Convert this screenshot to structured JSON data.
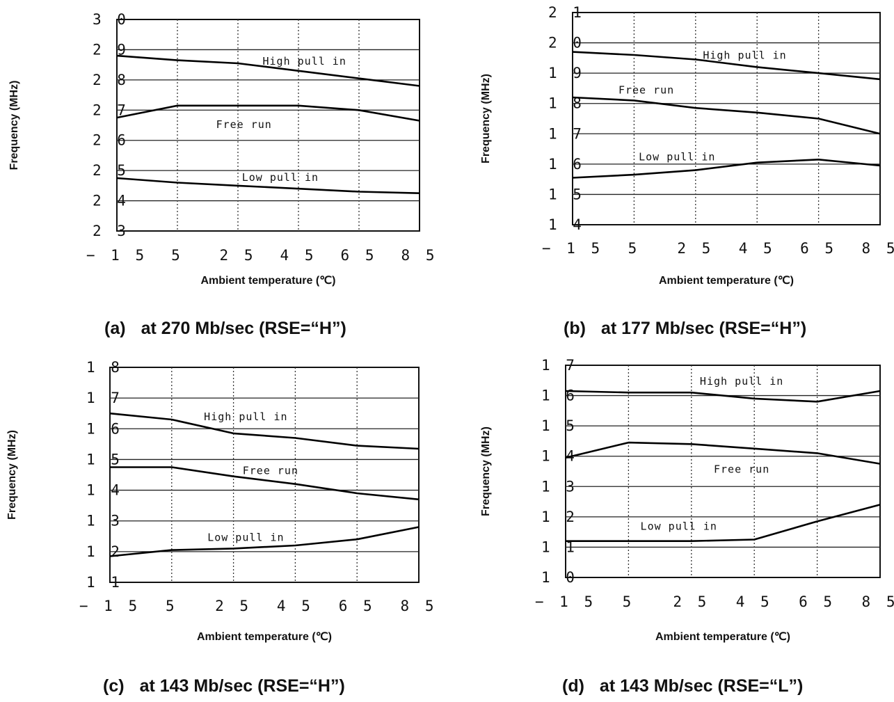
{
  "chart_data": [
    {
      "type": "line",
      "panel_label": "(a)",
      "caption": "at 270 Mb/sec (RSE=“H”)",
      "xlabel": "Ambient temperature (℃)",
      "ylabel": "Frequency (MHz)",
      "x_ticks": [
        "− 1 5",
        "5",
        "2 5",
        "4 5",
        "6 5",
        "8 5"
      ],
      "y_ticks": [
        "2 3",
        "2 4",
        "2 5",
        "2 6",
        "2 7",
        "2 8",
        "2 9",
        "3 0"
      ],
      "xlim": [
        -15,
        85
      ],
      "ylim": [
        23,
        30
      ],
      "grid": true,
      "series": [
        {
          "name": "High pull in",
          "x": [
            -15,
            5,
            25,
            45,
            65,
            85
          ],
          "y": [
            28.8,
            28.65,
            28.55,
            28.3,
            28.05,
            27.8
          ]
        },
        {
          "name": "Free run",
          "x": [
            -15,
            5,
            25,
            45,
            65,
            85
          ],
          "y": [
            26.75,
            27.15,
            27.15,
            27.15,
            27.0,
            26.65
          ]
        },
        {
          "name": "Low pull in",
          "x": [
            -15,
            5,
            25,
            45,
            65,
            85
          ],
          "y": [
            24.75,
            24.6,
            24.5,
            24.4,
            24.3,
            24.25
          ]
        }
      ]
    },
    {
      "type": "line",
      "panel_label": "(b)",
      "caption": "at 177 Mb/sec (RSE=“H”)",
      "xlabel": "Ambient temperature (℃)",
      "ylabel": "Frequency (MHz)",
      "x_ticks": [
        "− 1 5",
        "5",
        "2 5",
        "4 5",
        "6 5",
        "8 5"
      ],
      "y_ticks": [
        "1 4",
        "1 5",
        "1 6",
        "1 7",
        "1 8",
        "1 9",
        "2 0",
        "2 1"
      ],
      "xlim": [
        -15,
        85
      ],
      "ylim": [
        14,
        21
      ],
      "grid": true,
      "series": [
        {
          "name": "High pull in",
          "x": [
            -15,
            5,
            25,
            45,
            65,
            85
          ],
          "y": [
            19.7,
            19.6,
            19.45,
            19.2,
            19.0,
            18.8
          ]
        },
        {
          "name": "Free run",
          "x": [
            -15,
            5,
            25,
            45,
            65,
            85
          ],
          "y": [
            18.2,
            18.1,
            17.85,
            17.7,
            17.5,
            17.0
          ]
        },
        {
          "name": "Low pull in",
          "x": [
            -15,
            5,
            25,
            45,
            65,
            85
          ],
          "y": [
            15.55,
            15.65,
            15.8,
            16.05,
            16.15,
            15.95
          ]
        }
      ]
    },
    {
      "type": "line",
      "panel_label": "(c)",
      "caption": "at 143 Mb/sec (RSE=“H”)",
      "xlabel": "Ambient temperature (℃)",
      "ylabel": "Frequency (MHz)",
      "x_ticks": [
        "− 1 5",
        "5",
        "2 5",
        "4 5",
        "6 5",
        "8 5"
      ],
      "y_ticks": [
        "1 1",
        "1 2",
        "1 3",
        "1 4",
        "1 5",
        "1 6",
        "1 7",
        "1 8"
      ],
      "xlim": [
        -15,
        85
      ],
      "ylim": [
        11,
        18
      ],
      "grid": true,
      "series": [
        {
          "name": "High pull in",
          "x": [
            -15,
            5,
            25,
            45,
            65,
            85
          ],
          "y": [
            16.5,
            16.3,
            15.85,
            15.7,
            15.45,
            15.35
          ]
        },
        {
          "name": "Free run",
          "x": [
            -15,
            5,
            25,
            45,
            65,
            85
          ],
          "y": [
            14.75,
            14.75,
            14.45,
            14.2,
            13.9,
            13.7
          ]
        },
        {
          "name": "Low pull in",
          "x": [
            -15,
            5,
            25,
            45,
            65,
            85
          ],
          "y": [
            11.85,
            12.05,
            12.1,
            12.2,
            12.4,
            12.8
          ]
        }
      ]
    },
    {
      "type": "line",
      "panel_label": "(d)",
      "caption": "at 143 Mb/sec (RSE=“L”)",
      "xlabel": "Ambient temperature (℃)",
      "ylabel": "Frequency (MHz)",
      "x_ticks": [
        "− 1 5",
        "5",
        "2 5",
        "4 5",
        "6 5",
        "8 5"
      ],
      "y_ticks": [
        "1 0",
        "1 1",
        "1 2",
        "1 3",
        "1 4",
        "1 5",
        "1 6",
        "1 7"
      ],
      "xlim": [
        -15,
        85
      ],
      "ylim": [
        10,
        17
      ],
      "grid": true,
      "series": [
        {
          "name": "High pull in",
          "x": [
            -15,
            5,
            25,
            45,
            65,
            85
          ],
          "y": [
            16.15,
            16.1,
            16.1,
            15.9,
            15.8,
            16.15
          ]
        },
        {
          "name": "Free run",
          "x": [
            -15,
            5,
            25,
            45,
            65,
            85
          ],
          "y": [
            13.95,
            14.45,
            14.4,
            14.25,
            14.1,
            13.75
          ]
        },
        {
          "name": "Low pull in",
          "x": [
            -15,
            5,
            25,
            45,
            65,
            85
          ],
          "y": [
            11.2,
            11.2,
            11.2,
            11.25,
            11.85,
            12.4
          ]
        }
      ]
    }
  ]
}
